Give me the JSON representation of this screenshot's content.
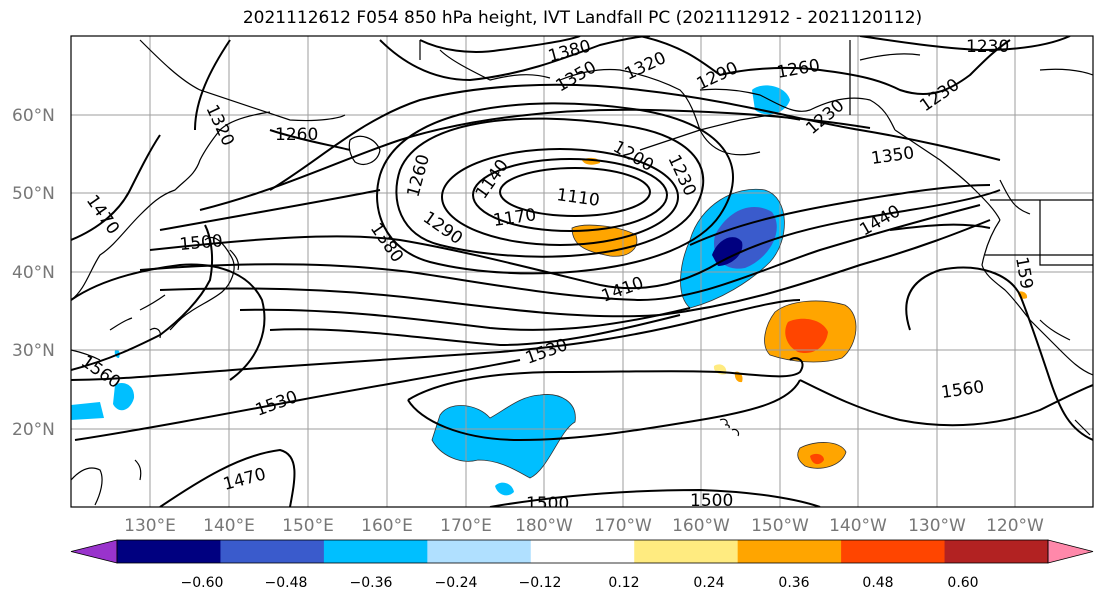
{
  "title": "2021112612 F054 850 hPa height, IVT Landfall PC (2021112912 - 2021120112)",
  "lat_labels": [
    "60°N",
    "50°N",
    "40°N",
    "30°N",
    "20°N"
  ],
  "lon_labels": [
    "130°E",
    "140°E",
    "150°E",
    "160°E",
    "170°E",
    "180°W",
    "170°W",
    "160°W",
    "150°W",
    "140°W",
    "130°W",
    "120°W"
  ],
  "contour_labels": [
    "1380",
    "1350",
    "1320",
    "1290",
    "1260",
    "1230",
    "1230",
    "1230",
    "1320",
    "1260",
    "1260",
    "1200",
    "1230",
    "1350",
    "1140",
    "1110",
    "1170",
    "1290",
    "1380",
    "1470",
    "1500",
    "1440",
    "1410",
    "1530",
    "1560",
    "1560",
    "1530",
    "1470",
    "1500",
    "1500",
    "159"
  ],
  "colorbar": {
    "colors": [
      "#9933cc",
      "#000080",
      "#3a5bcc",
      "#00bfff",
      "#b0e0ff",
      "#ffffff",
      "#ffeb80",
      "#ffa500",
      "#ff4500",
      "#b22222",
      "#ff88aa"
    ],
    "ticks": [
      "−0.60",
      "−0.48",
      "−0.36",
      "−0.24",
      "−0.12",
      "0.12",
      "0.24",
      "0.36",
      "0.48",
      "0.60"
    ]
  }
}
